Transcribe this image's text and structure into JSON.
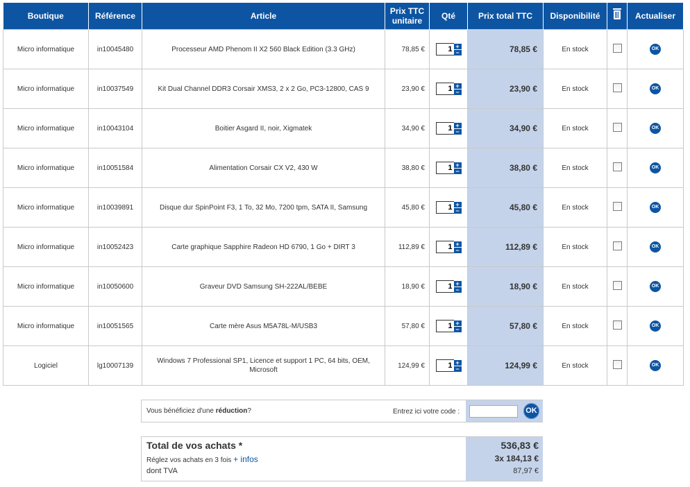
{
  "headers": {
    "shop": "Boutique",
    "ref": "Référence",
    "article": "Article",
    "unit_price": "Prix TTC unitaire",
    "qty": "Qté",
    "total_price": "Prix total TTC",
    "availability": "Disponibilité",
    "delete_icon": "trash-icon",
    "refresh": "Actualiser"
  },
  "rows": [
    {
      "shop": "Micro informatique",
      "ref": "in10045480",
      "article": "Processeur AMD Phenom II X2 560 Black Edition (3.3 GHz)",
      "unit_price": "78,85 €",
      "qty": "1",
      "total": "78,85 €",
      "availability": "En stock",
      "ok": "OK"
    },
    {
      "shop": "Micro informatique",
      "ref": "in10037549",
      "article": "Kit Dual Channel DDR3 Corsair XMS3, 2 x 2 Go, PC3-12800, CAS 9",
      "unit_price": "23,90 €",
      "qty": "1",
      "total": "23,90 €",
      "availability": "En stock",
      "ok": "OK"
    },
    {
      "shop": "Micro informatique",
      "ref": "in10043104",
      "article": "Boitier Asgard II, noir, Xigmatek",
      "unit_price": "34,90 €",
      "qty": "1",
      "total": "34,90 €",
      "availability": "En stock",
      "ok": "OK"
    },
    {
      "shop": "Micro informatique",
      "ref": "in10051584",
      "article": "Alimentation Corsair CX V2, 430 W",
      "unit_price": "38,80 €",
      "qty": "1",
      "total": "38,80 €",
      "availability": "En stock",
      "ok": "OK"
    },
    {
      "shop": "Micro informatique",
      "ref": "in10039891",
      "article": "Disque dur SpinPoint F3, 1 To, 32 Mo, 7200 tpm, SATA II, Samsung",
      "unit_price": "45,80 €",
      "qty": "1",
      "total": "45,80 €",
      "availability": "En stock",
      "ok": "OK"
    },
    {
      "shop": "Micro informatique",
      "ref": "in10052423",
      "article": "Carte graphique Sapphire Radeon HD 6790, 1 Go + DIRT 3",
      "unit_price": "112,89 €",
      "qty": "1",
      "total": "112,89 €",
      "availability": "En stock",
      "ok": "OK"
    },
    {
      "shop": "Micro informatique",
      "ref": "in10050600",
      "article": "Graveur DVD Samsung SH-222AL/BEBE",
      "unit_price": "18,90 €",
      "qty": "1",
      "total": "18,90 €",
      "availability": "En stock",
      "ok": "OK"
    },
    {
      "shop": "Micro informatique",
      "ref": "in10051565",
      "article": "Carte mère Asus M5A78L-M/USB3",
      "unit_price": "57,80 €",
      "qty": "1",
      "total": "57,80 €",
      "availability": "En stock",
      "ok": "OK"
    },
    {
      "shop": "Logiciel",
      "ref": "lg10007139",
      "article": "Windows 7 Professional SP1, Licence et support 1 PC, 64 bits, OEM, Microsoft",
      "unit_price": "124,99 €",
      "qty": "1",
      "total": "124,99 €",
      "availability": "En stock",
      "ok": "OK"
    }
  ],
  "qty_controls": {
    "plus": "+",
    "minus": "−"
  },
  "promo": {
    "text_before": "Vous bénéficiez d'une ",
    "text_bold": "réduction",
    "text_after": "?",
    "code_label": "Entrez ici votre code :",
    "code_value": "",
    "ok": "OK"
  },
  "totals": {
    "label": "Total de vos achats *",
    "amount": "536,83 €",
    "installments_text": "Réglez vos achats en 3 fois ",
    "installments_link": "+ infos",
    "installments_value": "3x  184,13 €",
    "vat_label": "dont TVA",
    "vat_value": "87,97 €"
  },
  "colors": {
    "accent": "#0d55a3",
    "total_bg": "#c5d3ea"
  }
}
